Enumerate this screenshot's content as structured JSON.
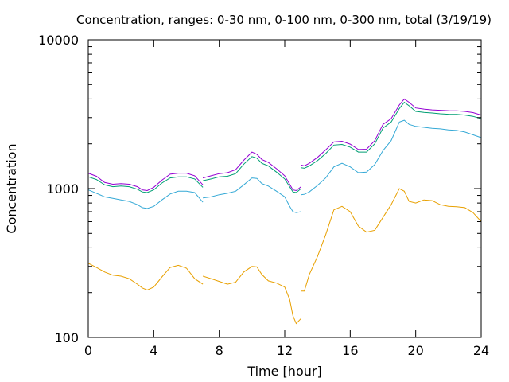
{
  "chart_data": {
    "type": "line",
    "title": "Concentration, ranges: 0-30 nm, 0-100 nm, 0-300 nm, total (3/19/19)",
    "xlabel": "Time [hour]",
    "ylabel": "Concentration",
    "xlim": [
      0,
      24
    ],
    "ylim": [
      100,
      10000
    ],
    "yscale": "log",
    "grid": false,
    "legend": "none",
    "x_ticks": [
      0,
      4,
      8,
      12,
      16,
      20,
      24
    ],
    "x_tick_labels": [
      "0",
      "4",
      "8",
      "12",
      "16",
      "20",
      "24"
    ],
    "y_ticks": [
      100,
      1000,
      10000
    ],
    "y_tick_labels": [
      "100",
      "1000",
      "10000"
    ],
    "series": [
      {
        "color": "#e8a000",
        "segments": [
          [
            [
              0,
              315
            ],
            [
              0.5,
              295
            ],
            [
              1,
              275
            ],
            [
              1.5,
              262
            ],
            [
              2,
              258
            ],
            [
              2.5,
              248
            ],
            [
              3,
              228
            ],
            [
              3.3,
              215
            ],
            [
              3.6,
              208
            ],
            [
              4,
              218
            ],
            [
              4.5,
              255
            ],
            [
              5,
              295
            ],
            [
              5.5,
              305
            ],
            [
              6,
              292
            ],
            [
              6.5,
              248
            ],
            [
              7,
              228
            ]
          ],
          [
            [
              7,
              258
            ],
            [
              7.5,
              248
            ],
            [
              8,
              238
            ],
            [
              8.5,
              228
            ],
            [
              9,
              235
            ],
            [
              9.5,
              275
            ],
            [
              10,
              300
            ],
            [
              10.3,
              298
            ],
            [
              10.6,
              265
            ],
            [
              11,
              240
            ],
            [
              11.5,
              232
            ],
            [
              12,
              218
            ],
            [
              12.3,
              180
            ],
            [
              12.5,
              140
            ],
            [
              12.7,
              124
            ],
            [
              13,
              134
            ]
          ],
          [
            [
              13,
              205
            ],
            [
              13.2,
              205
            ],
            [
              13.5,
              265
            ],
            [
              14,
              350
            ],
            [
              14.5,
              490
            ],
            [
              15,
              720
            ],
            [
              15.5,
              760
            ],
            [
              16,
              700
            ],
            [
              16.5,
              560
            ],
            [
              17,
              510
            ],
            [
              17.5,
              525
            ],
            [
              18,
              640
            ],
            [
              18.5,
              780
            ],
            [
              19,
              1000
            ],
            [
              19.3,
              960
            ],
            [
              19.6,
              820
            ],
            [
              20,
              800
            ],
            [
              20.5,
              840
            ],
            [
              21,
              830
            ],
            [
              21.5,
              780
            ],
            [
              22,
              760
            ],
            [
              22.5,
              755
            ],
            [
              23,
              745
            ],
            [
              23.5,
              690
            ],
            [
              24,
              600
            ]
          ]
        ]
      },
      {
        "color": "#35a9d6",
        "segments": [
          [
            [
              0,
              980
            ],
            [
              0.5,
              930
            ],
            [
              1,
              880
            ],
            [
              1.5,
              860
            ],
            [
              2,
              840
            ],
            [
              2.5,
              820
            ],
            [
              3,
              780
            ],
            [
              3.3,
              745
            ],
            [
              3.6,
              735
            ],
            [
              4,
              760
            ],
            [
              4.5,
              840
            ],
            [
              5,
              920
            ],
            [
              5.5,
              960
            ],
            [
              6,
              960
            ],
            [
              6.5,
              940
            ],
            [
              7,
              810
            ]
          ],
          [
            [
              7,
              865
            ],
            [
              7.5,
              880
            ],
            [
              8,
              910
            ],
            [
              8.5,
              930
            ],
            [
              9,
              960
            ],
            [
              9.5,
              1060
            ],
            [
              10,
              1180
            ],
            [
              10.3,
              1170
            ],
            [
              10.6,
              1080
            ],
            [
              11,
              1040
            ],
            [
              11.5,
              960
            ],
            [
              12,
              880
            ],
            [
              12.3,
              760
            ],
            [
              12.5,
              700
            ],
            [
              12.7,
              690
            ],
            [
              13,
              700
            ]
          ],
          [
            [
              13,
              910
            ],
            [
              13.2,
              915
            ],
            [
              13.5,
              950
            ],
            [
              14,
              1050
            ],
            [
              14.5,
              1180
            ],
            [
              15,
              1400
            ],
            [
              15.5,
              1480
            ],
            [
              16,
              1400
            ],
            [
              16.5,
              1280
            ],
            [
              17,
              1290
            ],
            [
              17.5,
              1450
            ],
            [
              18,
              1800
            ],
            [
              18.5,
              2100
            ],
            [
              19,
              2800
            ],
            [
              19.3,
              2880
            ],
            [
              19.6,
              2700
            ],
            [
              20,
              2620
            ],
            [
              20.5,
              2580
            ],
            [
              21,
              2540
            ],
            [
              21.5,
              2520
            ],
            [
              22,
              2480
            ],
            [
              22.5,
              2460
            ],
            [
              23,
              2400
            ],
            [
              23.5,
              2300
            ],
            [
              24,
              2200
            ]
          ]
        ]
      },
      {
        "color": "#009e73",
        "segments": [
          [
            [
              0,
              1200
            ],
            [
              0.5,
              1150
            ],
            [
              1,
              1060
            ],
            [
              1.5,
              1030
            ],
            [
              2,
              1040
            ],
            [
              2.5,
              1030
            ],
            [
              3,
              990
            ],
            [
              3.3,
              950
            ],
            [
              3.6,
              940
            ],
            [
              4,
              980
            ],
            [
              4.5,
              1090
            ],
            [
              5,
              1180
            ],
            [
              5.5,
              1200
            ],
            [
              6,
              1200
            ],
            [
              6.5,
              1160
            ],
            [
              7,
              1020
            ]
          ],
          [
            [
              7,
              1130
            ],
            [
              7.5,
              1160
            ],
            [
              8,
              1200
            ],
            [
              8.5,
              1210
            ],
            [
              9,
              1260
            ],
            [
              9.5,
              1460
            ],
            [
              10,
              1640
            ],
            [
              10.3,
              1600
            ],
            [
              10.6,
              1480
            ],
            [
              11,
              1420
            ],
            [
              11.5,
              1290
            ],
            [
              12,
              1160
            ],
            [
              12.3,
              1030
            ],
            [
              12.5,
              950
            ],
            [
              12.7,
              940
            ],
            [
              13,
              1000
            ]
          ],
          [
            [
              13,
              1380
            ],
            [
              13.2,
              1370
            ],
            [
              13.5,
              1420
            ],
            [
              14,
              1540
            ],
            [
              14.5,
              1720
            ],
            [
              15,
              1960
            ],
            [
              15.5,
              1980
            ],
            [
              16,
              1900
            ],
            [
              16.5,
              1760
            ],
            [
              17,
              1760
            ],
            [
              17.5,
              2000
            ],
            [
              18,
              2550
            ],
            [
              18.5,
              2800
            ],
            [
              19,
              3450
            ],
            [
              19.3,
              3800
            ],
            [
              19.6,
              3600
            ],
            [
              20,
              3300
            ],
            [
              20.5,
              3250
            ],
            [
              21,
              3220
            ],
            [
              21.5,
              3180
            ],
            [
              22,
              3160
            ],
            [
              22.5,
              3150
            ],
            [
              23,
              3120
            ],
            [
              23.5,
              3060
            ],
            [
              24,
              2950
            ]
          ]
        ]
      },
      {
        "color": "#9400d3",
        "segments": [
          [
            [
              0,
              1270
            ],
            [
              0.5,
              1210
            ],
            [
              1,
              1100
            ],
            [
              1.5,
              1070
            ],
            [
              2,
              1080
            ],
            [
              2.5,
              1070
            ],
            [
              3,
              1030
            ],
            [
              3.3,
              980
            ],
            [
              3.6,
              970
            ],
            [
              4,
              1020
            ],
            [
              4.5,
              1140
            ],
            [
              5,
              1250
            ],
            [
              5.5,
              1270
            ],
            [
              6,
              1270
            ],
            [
              6.5,
              1220
            ],
            [
              7,
              1060
            ]
          ],
          [
            [
              7,
              1180
            ],
            [
              7.5,
              1220
            ],
            [
              8,
              1260
            ],
            [
              8.5,
              1280
            ],
            [
              9,
              1340
            ],
            [
              9.5,
              1550
            ],
            [
              10,
              1760
            ],
            [
              10.3,
              1700
            ],
            [
              10.6,
              1570
            ],
            [
              11,
              1500
            ],
            [
              11.5,
              1360
            ],
            [
              12,
              1220
            ],
            [
              12.3,
              1070
            ],
            [
              12.5,
              980
            ],
            [
              12.7,
              970
            ],
            [
              13,
              1030
            ]
          ],
          [
            [
              13,
              1440
            ],
            [
              13.2,
              1420
            ],
            [
              13.5,
              1480
            ],
            [
              14,
              1620
            ],
            [
              14.5,
              1820
            ],
            [
              15,
              2060
            ],
            [
              15.5,
              2080
            ],
            [
              16,
              1990
            ],
            [
              16.5,
              1830
            ],
            [
              17,
              1840
            ],
            [
              17.5,
              2100
            ],
            [
              18,
              2700
            ],
            [
              18.5,
              2950
            ],
            [
              19,
              3650
            ],
            [
              19.3,
              4000
            ],
            [
              19.6,
              3800
            ],
            [
              20,
              3480
            ],
            [
              20.5,
              3420
            ],
            [
              21,
              3380
            ],
            [
              21.5,
              3360
            ],
            [
              22,
              3340
            ],
            [
              22.5,
              3330
            ],
            [
              23,
              3300
            ],
            [
              23.5,
              3240
            ],
            [
              24,
              3120
            ]
          ]
        ]
      }
    ]
  }
}
